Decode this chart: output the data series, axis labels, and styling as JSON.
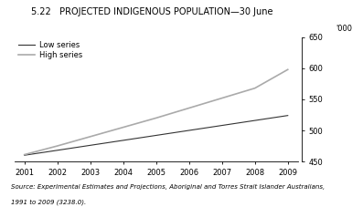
{
  "title": "5.22   PROJECTED INDIGENOUS POPULATION—30 June",
  "x": [
    2001,
    2002,
    2003,
    2004,
    2005,
    2006,
    2007,
    2008,
    2009
  ],
  "low_series": [
    460,
    468,
    476,
    484,
    492,
    500,
    508,
    516,
    524
  ],
  "high_series": [
    461,
    475,
    490,
    505,
    520,
    536,
    552,
    568,
    598
  ],
  "low_label": "Low series",
  "high_label": "High series",
  "low_color": "#333333",
  "high_color": "#aaaaaa",
  "ylabel_right": "'000",
  "ylim": [
    450,
    650
  ],
  "yticks": [
    450,
    500,
    550,
    600,
    650
  ],
  "xlim_min": 2001,
  "xlim_max": 2009,
  "xticks": [
    2001,
    2002,
    2003,
    2004,
    2005,
    2006,
    2007,
    2008,
    2009
  ],
  "source_line1": "Source: Experimental Estimates and Projections, Aboriginal and Torres Strait Islander Australians,",
  "source_line2": "1991 to 2009 (3238.0).",
  "bg_color": "#ffffff"
}
